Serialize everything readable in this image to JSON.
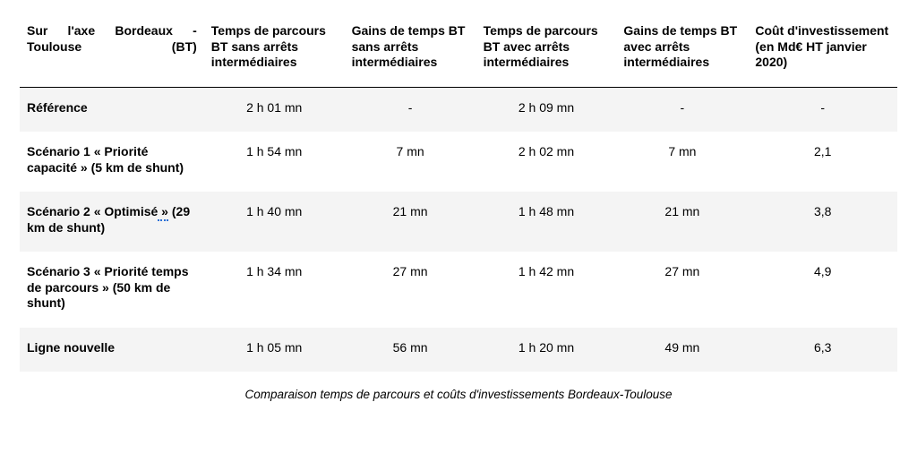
{
  "table": {
    "columns": [
      "Sur l'axe Bordeaux - Toulouse (BT)",
      "Temps de parcours BT sans arrêts intermédiaires",
      "Gains de temps BT sans arrêts intermédiaires",
      "Temps de parcours BT avec arrêts intermédiaires",
      "Gains de temps BT avec arrêts intermédiaires",
      "Coût d'investissement (en Md€ HT janvier 2020)"
    ],
    "rows": [
      {
        "label_before": "Référence",
        "label_marked": "",
        "label_after": "",
        "shaded": true,
        "cells": [
          "2 h 01 mn",
          "-",
          "2 h 09 mn",
          "-",
          "-"
        ]
      },
      {
        "label_before": "Scénario 1 « Priorité capacité » (5 km de shunt)",
        "label_marked": "",
        "label_after": "",
        "shaded": false,
        "cells": [
          "1 h 54 mn",
          "7 mn",
          "2 h 02 mn",
          "7 mn",
          "2,1"
        ]
      },
      {
        "label_before": "Scénario 2 « Optimisé",
        "label_marked": " »",
        "label_after": " (29 km de shunt)",
        "shaded": true,
        "cells": [
          "1 h 40 mn",
          "21 mn",
          "1 h 48 mn",
          "21 mn",
          "3,8"
        ]
      },
      {
        "label_before": "Scénario 3 « Priorité temps de parcours » (50 km de shunt)",
        "label_marked": "",
        "label_after": "",
        "shaded": false,
        "cells": [
          "1 h 34 mn",
          "27 mn",
          "1 h 42 mn",
          "27 mn",
          "4,9"
        ]
      },
      {
        "label_before": "Ligne nouvelle",
        "label_marked": "",
        "label_after": "",
        "shaded": true,
        "cells": [
          "1 h 05 mn",
          "56 mn",
          "1 h 20 mn",
          "49 mn",
          "6,3"
        ]
      }
    ],
    "caption": "Comparaison temps de parcours et coûts d'investissements Bordeaux-Toulouse",
    "colors": {
      "background": "#ffffff",
      "text": "#000000",
      "shaded_row": "#f4f4f4",
      "header_border": "#000000",
      "squiggle": "#2a6fd6"
    },
    "font_sizes": {
      "header": 14,
      "body": 14,
      "caption": 13.5
    }
  }
}
